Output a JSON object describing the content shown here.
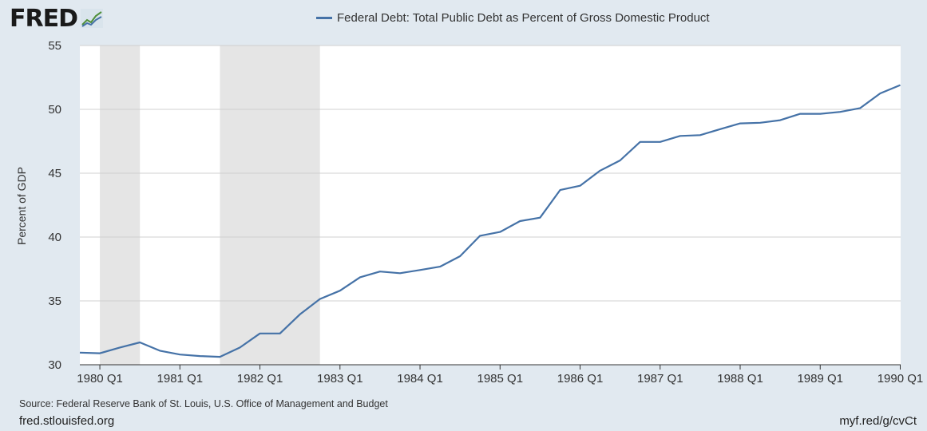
{
  "header": {
    "logo_text": "FRED",
    "logo_icon": "chart-line-icon"
  },
  "footer": {
    "source": "Source: Federal Reserve Bank of St. Louis, U.S. Office of Management and Budget",
    "site": "fred.stlouisfed.org",
    "short_url": "myf.red/g/cvCt"
  },
  "colors": {
    "series": "#4572a7",
    "recession": "#e5e5e5",
    "background": "#e1e9f0",
    "plot": "#ffffff"
  },
  "chart_data": {
    "type": "line",
    "title": "",
    "xlabel": "",
    "ylabel": "Percent of GDP",
    "ylim": [
      30,
      55
    ],
    "xlim": [
      "1980 Q1",
      "1990 Q1"
    ],
    "yticks": [
      30,
      35,
      40,
      45,
      50,
      55
    ],
    "xticks": [
      "1980 Q1",
      "1981 Q1",
      "1982 Q1",
      "1983 Q1",
      "1984 Q1",
      "1985 Q1",
      "1986 Q1",
      "1987 Q1",
      "1988 Q1",
      "1989 Q1",
      "1990 Q1"
    ],
    "grid": true,
    "legend": "top-center",
    "recessions": [
      {
        "start": "1980 Q1",
        "end": "1980 Q3"
      },
      {
        "start": "1981 Q3",
        "end": "1982 Q4"
      }
    ],
    "series": [
      {
        "name": "Federal Debt: Total Public Debt as Percent of Gross Domestic Product",
        "x": [
          "1979 Q4",
          "1980 Q1",
          "1980 Q2",
          "1980 Q3",
          "1980 Q4",
          "1981 Q1",
          "1981 Q2",
          "1981 Q3",
          "1981 Q4",
          "1982 Q1",
          "1982 Q2",
          "1982 Q3",
          "1982 Q4",
          "1983 Q1",
          "1983 Q2",
          "1983 Q3",
          "1983 Q4",
          "1984 Q1",
          "1984 Q2",
          "1984 Q3",
          "1984 Q4",
          "1985 Q1",
          "1985 Q2",
          "1985 Q3",
          "1985 Q4",
          "1986 Q1",
          "1986 Q2",
          "1986 Q3",
          "1986 Q4",
          "1987 Q1",
          "1987 Q2",
          "1987 Q3",
          "1987 Q4",
          "1988 Q1",
          "1988 Q2",
          "1988 Q3",
          "1988 Q4",
          "1989 Q1",
          "1989 Q2",
          "1989 Q3",
          "1989 Q4",
          "1990 Q1"
        ],
        "values": [
          30.95,
          30.9,
          31.35,
          31.75,
          31.1,
          30.8,
          30.68,
          30.62,
          31.35,
          32.45,
          32.45,
          33.95,
          35.15,
          35.8,
          36.85,
          37.3,
          37.17,
          37.42,
          37.68,
          38.5,
          40.1,
          40.4,
          41.25,
          41.52,
          43.68,
          44.02,
          45.2,
          46.0,
          47.45,
          47.45,
          47.92,
          47.98,
          48.45,
          48.9,
          48.95,
          49.15,
          49.65,
          49.65,
          49.8,
          50.1,
          51.25,
          51.9
        ]
      }
    ]
  }
}
